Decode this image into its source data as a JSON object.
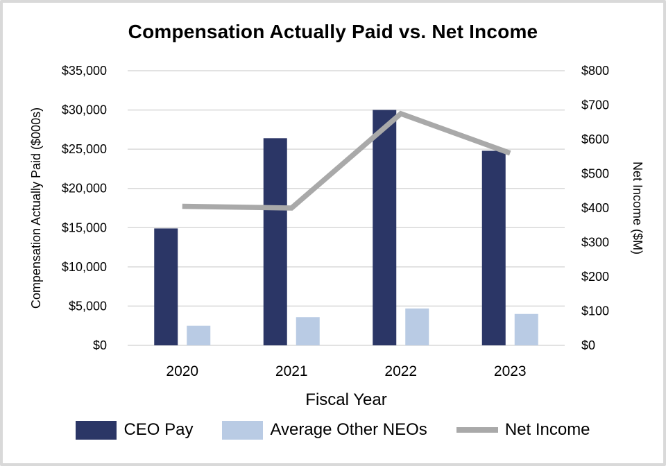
{
  "chart_data": {
    "type": "combo-bar-line",
    "title": "Compensation Actually Paid vs. Net Income",
    "xlabel": "Fiscal Year",
    "ylabel_left": "Compensation Actually Paid ($000s)",
    "ylabel_right": "Net Income ($M)",
    "categories": [
      "2020",
      "2021",
      "2022",
      "2023"
    ],
    "series": [
      {
        "name": "CEO Pay",
        "type": "bar",
        "axis": "left",
        "color": "#2B3666",
        "values": [
          14900,
          26400,
          30000,
          24800
        ]
      },
      {
        "name": "Average Other NEOs",
        "type": "bar",
        "axis": "left",
        "color": "#B9CBE4",
        "values": [
          2500,
          3600,
          4700,
          4000
        ]
      },
      {
        "name": "Net Income",
        "type": "line",
        "axis": "right",
        "color": "#A9A9A9",
        "values": [
          405,
          400,
          675,
          560
        ]
      }
    ],
    "left_axis": {
      "min": 0,
      "max": 35000,
      "step": 5000,
      "ticks": [
        "$0",
        "$5,000",
        "$10,000",
        "$15,000",
        "$20,000",
        "$25,000",
        "$30,000",
        "$35,000"
      ]
    },
    "right_axis": {
      "min": 0,
      "max": 800,
      "step": 100,
      "ticks": [
        "$0",
        "$100",
        "$200",
        "$300",
        "$400",
        "$500",
        "$600",
        "$700",
        "$800"
      ]
    },
    "grid": true,
    "gridline_color": "#D9D9D9",
    "legend_position": "bottom"
  }
}
